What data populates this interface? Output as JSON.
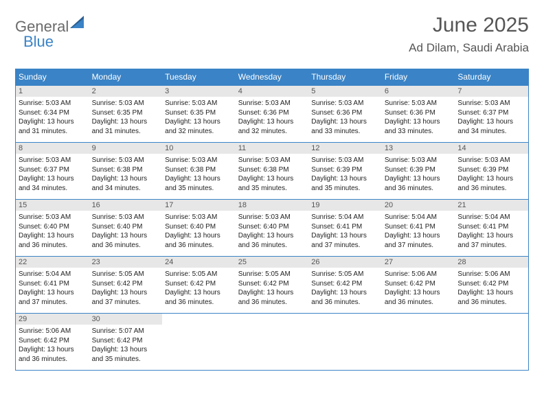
{
  "logo": {
    "part1": "General",
    "part2": "Blue",
    "color1": "#6a6a6a",
    "color2": "#3a83c6"
  },
  "header": {
    "month": "June 2025",
    "location": "Ad Dilam, Saudi Arabia"
  },
  "colors": {
    "header_bg": "#3a83c6",
    "header_text": "#ffffff",
    "daynum_bg": "#e7e7e7",
    "border": "#3a83c6"
  },
  "dayNames": [
    "Sunday",
    "Monday",
    "Tuesday",
    "Wednesday",
    "Thursday",
    "Friday",
    "Saturday"
  ],
  "days": [
    {
      "n": "1",
      "sunrise": "5:03 AM",
      "sunset": "6:34 PM",
      "daylight": "13 hours and 31 minutes."
    },
    {
      "n": "2",
      "sunrise": "5:03 AM",
      "sunset": "6:35 PM",
      "daylight": "13 hours and 31 minutes."
    },
    {
      "n": "3",
      "sunrise": "5:03 AM",
      "sunset": "6:35 PM",
      "daylight": "13 hours and 32 minutes."
    },
    {
      "n": "4",
      "sunrise": "5:03 AM",
      "sunset": "6:36 PM",
      "daylight": "13 hours and 32 minutes."
    },
    {
      "n": "5",
      "sunrise": "5:03 AM",
      "sunset": "6:36 PM",
      "daylight": "13 hours and 33 minutes."
    },
    {
      "n": "6",
      "sunrise": "5:03 AM",
      "sunset": "6:36 PM",
      "daylight": "13 hours and 33 minutes."
    },
    {
      "n": "7",
      "sunrise": "5:03 AM",
      "sunset": "6:37 PM",
      "daylight": "13 hours and 34 minutes."
    },
    {
      "n": "8",
      "sunrise": "5:03 AM",
      "sunset": "6:37 PM",
      "daylight": "13 hours and 34 minutes."
    },
    {
      "n": "9",
      "sunrise": "5:03 AM",
      "sunset": "6:38 PM",
      "daylight": "13 hours and 34 minutes."
    },
    {
      "n": "10",
      "sunrise": "5:03 AM",
      "sunset": "6:38 PM",
      "daylight": "13 hours and 35 minutes."
    },
    {
      "n": "11",
      "sunrise": "5:03 AM",
      "sunset": "6:38 PM",
      "daylight": "13 hours and 35 minutes."
    },
    {
      "n": "12",
      "sunrise": "5:03 AM",
      "sunset": "6:39 PM",
      "daylight": "13 hours and 35 minutes."
    },
    {
      "n": "13",
      "sunrise": "5:03 AM",
      "sunset": "6:39 PM",
      "daylight": "13 hours and 36 minutes."
    },
    {
      "n": "14",
      "sunrise": "5:03 AM",
      "sunset": "6:39 PM",
      "daylight": "13 hours and 36 minutes."
    },
    {
      "n": "15",
      "sunrise": "5:03 AM",
      "sunset": "6:40 PM",
      "daylight": "13 hours and 36 minutes."
    },
    {
      "n": "16",
      "sunrise": "5:03 AM",
      "sunset": "6:40 PM",
      "daylight": "13 hours and 36 minutes."
    },
    {
      "n": "17",
      "sunrise": "5:03 AM",
      "sunset": "6:40 PM",
      "daylight": "13 hours and 36 minutes."
    },
    {
      "n": "18",
      "sunrise": "5:03 AM",
      "sunset": "6:40 PM",
      "daylight": "13 hours and 36 minutes."
    },
    {
      "n": "19",
      "sunrise": "5:04 AM",
      "sunset": "6:41 PM",
      "daylight": "13 hours and 37 minutes."
    },
    {
      "n": "20",
      "sunrise": "5:04 AM",
      "sunset": "6:41 PM",
      "daylight": "13 hours and 37 minutes."
    },
    {
      "n": "21",
      "sunrise": "5:04 AM",
      "sunset": "6:41 PM",
      "daylight": "13 hours and 37 minutes."
    },
    {
      "n": "22",
      "sunrise": "5:04 AM",
      "sunset": "6:41 PM",
      "daylight": "13 hours and 37 minutes."
    },
    {
      "n": "23",
      "sunrise": "5:05 AM",
      "sunset": "6:42 PM",
      "daylight": "13 hours and 37 minutes."
    },
    {
      "n": "24",
      "sunrise": "5:05 AM",
      "sunset": "6:42 PM",
      "daylight": "13 hours and 36 minutes."
    },
    {
      "n": "25",
      "sunrise": "5:05 AM",
      "sunset": "6:42 PM",
      "daylight": "13 hours and 36 minutes."
    },
    {
      "n": "26",
      "sunrise": "5:05 AM",
      "sunset": "6:42 PM",
      "daylight": "13 hours and 36 minutes."
    },
    {
      "n": "27",
      "sunrise": "5:06 AM",
      "sunset": "6:42 PM",
      "daylight": "13 hours and 36 minutes."
    },
    {
      "n": "28",
      "sunrise": "5:06 AM",
      "sunset": "6:42 PM",
      "daylight": "13 hours and 36 minutes."
    },
    {
      "n": "29",
      "sunrise": "5:06 AM",
      "sunset": "6:42 PM",
      "daylight": "13 hours and 36 minutes."
    },
    {
      "n": "30",
      "sunrise": "5:07 AM",
      "sunset": "6:42 PM",
      "daylight": "13 hours and 35 minutes."
    }
  ],
  "labels": {
    "sunrise": "Sunrise: ",
    "sunset": "Sunset: ",
    "daylight": "Daylight: "
  },
  "startOffset": 0
}
